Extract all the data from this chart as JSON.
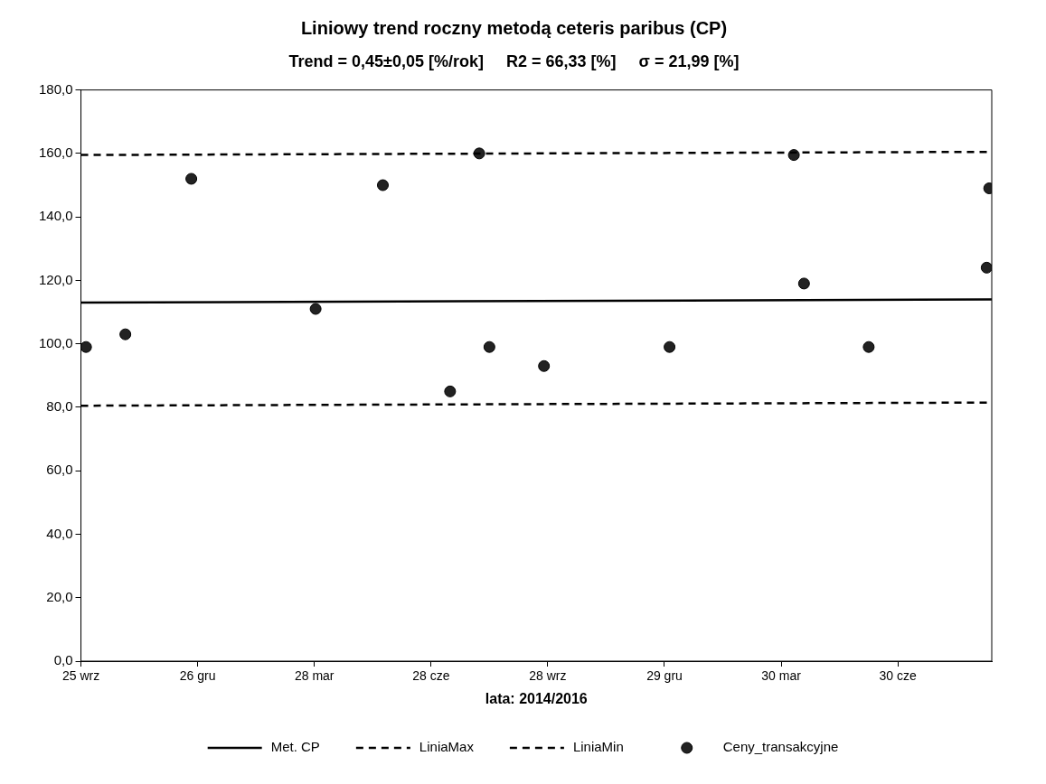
{
  "chart_data": {
    "type": "scatter",
    "title": "Liniowy trend roczny metodą ceteris paribus (CP)",
    "subtitle": "Trend = 0,45±0,05 [%/rok]     R2 = 66,33 [%]     σ = 21,99 [%]",
    "xlabel": "lata: 2014/2016",
    "xlim": [
      "2014-09-25",
      "2016-09-12"
    ],
    "xticks": [
      {
        "value": "2014-09-25",
        "label": "25 wrz"
      },
      {
        "value": "2014-12-26",
        "label": "26 gru"
      },
      {
        "value": "2015-03-28",
        "label": "28 mar"
      },
      {
        "value": "2015-06-28",
        "label": "28 cze"
      },
      {
        "value": "2015-09-28",
        "label": "28 wrz"
      },
      {
        "value": "2015-12-29",
        "label": "29 gru"
      },
      {
        "value": "2016-03-30",
        "label": "30 mar"
      },
      {
        "value": "2016-06-30",
        "label": "30 cze"
      }
    ],
    "ylim": [
      0,
      180
    ],
    "yticks": [
      {
        "value": 0,
        "label": "0,0"
      },
      {
        "value": 20,
        "label": "20,0"
      },
      {
        "value": 40,
        "label": "40,0"
      },
      {
        "value": 60,
        "label": "60,0"
      },
      {
        "value": 80,
        "label": "80,0"
      },
      {
        "value": 100,
        "label": "100,0"
      },
      {
        "value": 120,
        "label": "120,0"
      },
      {
        "value": 140,
        "label": "140,0"
      },
      {
        "value": 160,
        "label": "160,0"
      },
      {
        "value": 180,
        "label": "180,0"
      }
    ],
    "grid": false,
    "legend": "bottom",
    "series": [
      {
        "name": "Met. CP",
        "type": "line",
        "color": "#000000",
        "line_style": "solid",
        "marker": "none",
        "x": [
          "2014-09-25",
          "2016-09-12"
        ],
        "values": [
          113,
          114
        ]
      },
      {
        "name": "LiniaMax",
        "type": "line",
        "color": "#000000",
        "line_style": "dashed",
        "marker": "none",
        "x": [
          "2014-09-25",
          "2016-09-12"
        ],
        "values": [
          159.5,
          160.5
        ]
      },
      {
        "name": "LiniaMin",
        "type": "line",
        "color": "#000000",
        "line_style": "dashed",
        "marker": "none",
        "x": [
          "2014-09-25",
          "2016-09-12"
        ],
        "values": [
          80.5,
          81.5
        ]
      },
      {
        "name": "Ceny_transakcyjne",
        "type": "scatter",
        "color": "#222222",
        "marker": "circle",
        "x": [
          "2014-09-29",
          "2014-10-30",
          "2014-12-21",
          "2015-03-29",
          "2015-05-21",
          "2015-07-13",
          "2015-08-05",
          "2015-08-13",
          "2015-09-25",
          "2016-01-02",
          "2016-04-09",
          "2016-04-17",
          "2016-06-07",
          "2016-09-08",
          "2016-09-10"
        ],
        "values": [
          99,
          103,
          152,
          111,
          150,
          85,
          160,
          99,
          93,
          99,
          159.5,
          119,
          99,
          124,
          149
        ]
      }
    ]
  }
}
